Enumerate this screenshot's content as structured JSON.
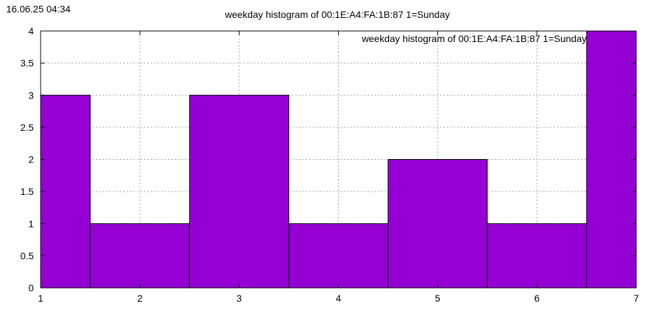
{
  "timestamp": "16.06.25 04:34",
  "chart_data": {
    "type": "bar",
    "title": "weekday histogram of 00:1E:A4:FA:1B:87 1=Sunday",
    "legend_label": "weekday histogram of 00:1E:A4:FA:1B:87 1=Sunday",
    "legend_position": "top-right",
    "xlabel": "",
    "ylabel": "",
    "x": [
      1,
      2,
      3,
      4,
      5,
      6,
      7
    ],
    "values": [
      3,
      1,
      3,
      1,
      2,
      1,
      4
    ],
    "bar_width": 1,
    "xlim": [
      1,
      7
    ],
    "ylim": [
      0,
      4
    ],
    "x_ticks": [
      "1",
      "2",
      "3",
      "4",
      "5",
      "6",
      "7"
    ],
    "y_ticks": [
      "0",
      "0.5",
      "1",
      "1.5",
      "2",
      "2.5",
      "3",
      "3.5",
      "4"
    ],
    "grid": true,
    "colors": {
      "bar_fill": "#9400d3",
      "bar_edge": "#000000",
      "grid": "#a0a0a0",
      "frame": "#000000"
    }
  }
}
